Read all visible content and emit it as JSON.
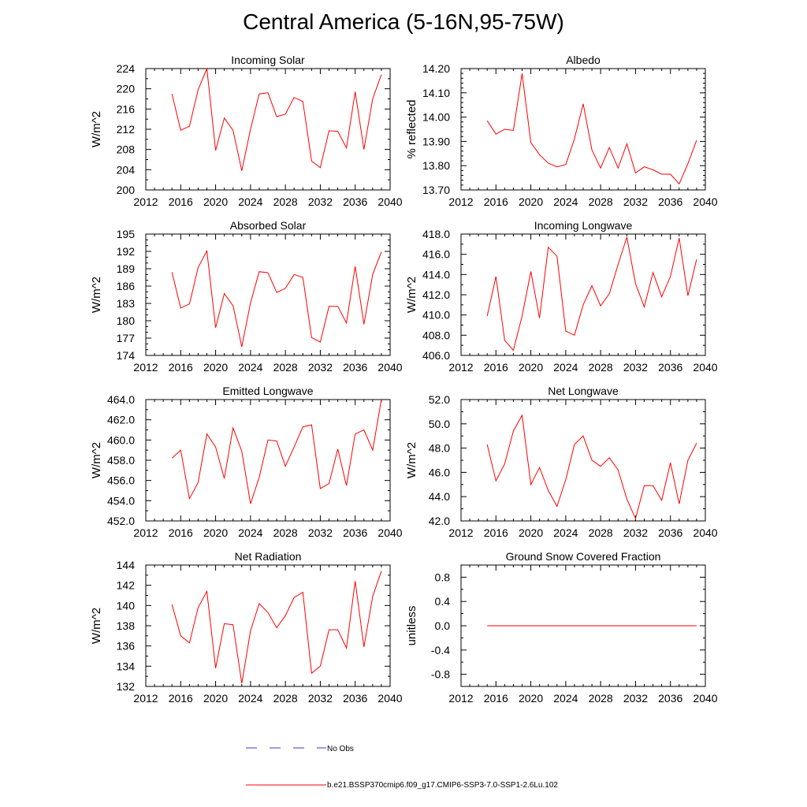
{
  "figure": {
    "title": "Central America (5-16N,95-75W)"
  },
  "legend": [
    {
      "label": "No Obs",
      "color": "#3b3bd6",
      "dash": true
    },
    {
      "label": "b.e21.BSSP370cmip6.f09_g17.CMIP6-SSP3-7.0-SSP1-2.6Lu.102",
      "color": "#ff0000",
      "dash": false
    }
  ],
  "chart_data": [
    {
      "type": "line",
      "title": "Incoming Solar",
      "ylabel": "W/m^2",
      "xlim": [
        2012,
        2040
      ],
      "ylim": [
        200,
        224
      ],
      "x_ticks": [
        2012,
        2016,
        2020,
        2024,
        2028,
        2032,
        2036,
        2040
      ],
      "y_ticks": [
        "200",
        "204",
        "208",
        "212",
        "216",
        "220",
        "224"
      ],
      "y_ticks_val": [
        200,
        204,
        208,
        212,
        216,
        220,
        224
      ],
      "y_minor": 2,
      "series": [
        {
          "color": "#ff0000",
          "x": [
            2015,
            2016,
            2017,
            2018,
            2019,
            2020,
            2021,
            2022,
            2023,
            2024,
            2025,
            2026,
            2027,
            2028,
            2029,
            2030,
            2031,
            2032,
            2033,
            2034,
            2035,
            2036,
            2037,
            2038,
            2039
          ],
          "y": [
            219.0,
            211.8,
            212.6,
            219.8,
            224.0,
            207.8,
            214.2,
            211.8,
            203.8,
            212.0,
            219.0,
            219.2,
            214.5,
            215.0,
            218.3,
            217.5,
            205.7,
            204.4,
            211.7,
            211.6,
            208.3,
            219.4,
            208.0,
            218.0,
            222.8
          ]
        }
      ]
    },
    {
      "type": "line",
      "title": "Albedo",
      "ylabel": "% reflected",
      "xlim": [
        2012,
        2040
      ],
      "ylim": [
        13.7,
        14.2
      ],
      "x_ticks": [
        2012,
        2016,
        2020,
        2024,
        2028,
        2032,
        2036,
        2040
      ],
      "y_ticks": [
        "13.70",
        "13.80",
        "13.90",
        "14.00",
        "14.10",
        "14.20"
      ],
      "y_ticks_val": [
        13.7,
        13.8,
        13.9,
        14.0,
        14.1,
        14.2
      ],
      "y_minor": 5,
      "series": [
        {
          "color": "#ff0000",
          "x": [
            2015,
            2016,
            2017,
            2018,
            2019,
            2020,
            2021,
            2022,
            2023,
            2024,
            2025,
            2026,
            2027,
            2028,
            2029,
            2030,
            2031,
            2032,
            2033,
            2034,
            2035,
            2036,
            2037,
            2038,
            2039
          ],
          "y": [
            13.985,
            13.93,
            13.95,
            13.945,
            14.18,
            13.895,
            13.845,
            13.81,
            13.795,
            13.805,
            13.91,
            14.055,
            13.865,
            13.79,
            13.875,
            13.79,
            13.89,
            13.77,
            13.795,
            13.783,
            13.765,
            13.765,
            13.725,
            13.808,
            13.905
          ]
        }
      ]
    },
    {
      "type": "line",
      "title": "Absorbed Solar",
      "ylabel": "W/m^2",
      "xlim": [
        2012,
        2040
      ],
      "ylim": [
        174,
        195
      ],
      "x_ticks": [
        2012,
        2016,
        2020,
        2024,
        2028,
        2032,
        2036,
        2040
      ],
      "y_ticks": [
        "174",
        "177",
        "180",
        "183",
        "186",
        "189",
        "192",
        "195"
      ],
      "y_ticks_val": [
        174,
        177,
        180,
        183,
        186,
        189,
        192,
        195
      ],
      "y_minor": 3,
      "series": [
        {
          "color": "#ff0000",
          "x": [
            2015,
            2016,
            2017,
            2018,
            2019,
            2020,
            2021,
            2022,
            2023,
            2024,
            2025,
            2026,
            2027,
            2028,
            2029,
            2030,
            2031,
            2032,
            2033,
            2034,
            2035,
            2036,
            2037,
            2038,
            2039
          ],
          "y": [
            188.4,
            182.2,
            182.9,
            189.2,
            192.1,
            178.8,
            184.7,
            182.6,
            175.5,
            183.1,
            188.5,
            188.3,
            184.9,
            185.6,
            188.0,
            187.5,
            177.1,
            176.3,
            182.5,
            182.5,
            179.6,
            189.4,
            179.4,
            188.0,
            191.9
          ]
        }
      ]
    },
    {
      "type": "line",
      "title": "Incoming Longwave",
      "ylabel": "W/m^2",
      "xlim": [
        2012,
        2040
      ],
      "ylim": [
        406.0,
        418.0
      ],
      "x_ticks": [
        2012,
        2016,
        2020,
        2024,
        2028,
        2032,
        2036,
        2040
      ],
      "y_ticks": [
        "406.0",
        "408.0",
        "410.0",
        "412.0",
        "414.0",
        "416.0",
        "418.0"
      ],
      "y_ticks_val": [
        406,
        408,
        410,
        412,
        414,
        416,
        418
      ],
      "y_minor": 2,
      "series": [
        {
          "color": "#ff0000",
          "x": [
            2015,
            2016,
            2017,
            2018,
            2019,
            2020,
            2021,
            2022,
            2023,
            2024,
            2025,
            2026,
            2027,
            2028,
            2029,
            2030,
            2031,
            2032,
            2033,
            2034,
            2035,
            2036,
            2037,
            2038,
            2039
          ],
          "y": [
            409.9,
            413.8,
            407.5,
            406.5,
            409.9,
            414.3,
            409.7,
            416.7,
            415.8,
            408.4,
            408.0,
            411.0,
            412.9,
            410.9,
            412.1,
            415.0,
            417.7,
            413.1,
            410.8,
            414.2,
            411.8,
            413.8,
            417.6,
            411.9,
            415.5
          ]
        }
      ]
    },
    {
      "type": "line",
      "title": "Emitted Longwave",
      "ylabel": "W/m^2",
      "xlim": [
        2012,
        2040
      ],
      "ylim": [
        452.0,
        464.0
      ],
      "x_ticks": [
        2012,
        2016,
        2020,
        2024,
        2028,
        2032,
        2036,
        2040
      ],
      "y_ticks": [
        "452.0",
        "454.0",
        "456.0",
        "458.0",
        "460.0",
        "462.0",
        "464.0"
      ],
      "y_ticks_val": [
        452,
        454,
        456,
        458,
        460,
        462,
        464
      ],
      "y_minor": 2,
      "series": [
        {
          "color": "#ff0000",
          "x": [
            2015,
            2016,
            2017,
            2018,
            2019,
            2020,
            2021,
            2022,
            2023,
            2024,
            2025,
            2026,
            2027,
            2028,
            2029,
            2030,
            2031,
            2032,
            2033,
            2034,
            2035,
            2036,
            2037,
            2038,
            2039
          ],
          "y": [
            458.2,
            459.0,
            454.2,
            455.8,
            460.6,
            459.3,
            456.2,
            461.2,
            458.9,
            453.7,
            456.3,
            460.0,
            459.9,
            457.4,
            459.3,
            461.3,
            461.5,
            455.2,
            455.7,
            459.1,
            455.5,
            460.6,
            461.0,
            459.0,
            464.0
          ]
        }
      ]
    },
    {
      "type": "line",
      "title": "Net Longwave",
      "ylabel": "W/m^2",
      "xlim": [
        2012,
        2040
      ],
      "ylim": [
        42.0,
        52.0
      ],
      "x_ticks": [
        2012,
        2016,
        2020,
        2024,
        2028,
        2032,
        2036,
        2040
      ],
      "y_ticks": [
        "42.0",
        "44.0",
        "46.0",
        "48.0",
        "50.0",
        "52.0"
      ],
      "y_ticks_val": [
        42,
        44,
        46,
        48,
        50,
        52
      ],
      "y_minor": 2,
      "series": [
        {
          "color": "#ff0000",
          "x": [
            2015,
            2016,
            2017,
            2018,
            2019,
            2020,
            2021,
            2022,
            2023,
            2024,
            2025,
            2026,
            2027,
            2028,
            2029,
            2030,
            2031,
            2032,
            2033,
            2034,
            2035,
            2036,
            2037,
            2038,
            2039
          ],
          "y": [
            48.3,
            45.3,
            46.7,
            49.4,
            50.7,
            45.0,
            46.4,
            44.5,
            43.2,
            45.4,
            48.3,
            49.0,
            47.0,
            46.5,
            47.2,
            46.2,
            43.8,
            42.2,
            44.9,
            44.9,
            43.7,
            46.8,
            43.4,
            47.0,
            48.4
          ]
        }
      ]
    },
    {
      "type": "line",
      "title": "Net Radiation",
      "ylabel": "W/m^2",
      "xlim": [
        2012,
        2040
      ],
      "ylim": [
        132,
        144
      ],
      "x_ticks": [
        2012,
        2016,
        2020,
        2024,
        2028,
        2032,
        2036,
        2040
      ],
      "y_ticks": [
        "132",
        "134",
        "136",
        "138",
        "140",
        "142",
        "144"
      ],
      "y_ticks_val": [
        132,
        134,
        136,
        138,
        140,
        142,
        144
      ],
      "y_minor": 2,
      "series": [
        {
          "color": "#ff0000",
          "x": [
            2015,
            2016,
            2017,
            2018,
            2019,
            2020,
            2021,
            2022,
            2023,
            2024,
            2025,
            2026,
            2027,
            2028,
            2029,
            2030,
            2031,
            2032,
            2033,
            2034,
            2035,
            2036,
            2037,
            2038,
            2039
          ],
          "y": [
            140.1,
            137.0,
            136.3,
            139.8,
            141.4,
            133.8,
            138.2,
            138.1,
            132.3,
            137.5,
            140.2,
            139.3,
            137.8,
            139.0,
            140.8,
            141.3,
            133.3,
            134.0,
            137.6,
            137.6,
            135.8,
            142.4,
            135.9,
            140.9,
            143.4
          ]
        }
      ]
    },
    {
      "type": "line",
      "title": "Ground Snow Covered Fraction",
      "ylabel": "unitless",
      "xlim": [
        2012,
        2040
      ],
      "ylim": [
        -1.0,
        1.0
      ],
      "x_ticks": [
        2012,
        2016,
        2020,
        2024,
        2028,
        2032,
        2036,
        2040
      ],
      "y_ticks": [
        "-0.8",
        "-0.4",
        "0.0",
        "0.4",
        "0.8"
      ],
      "y_ticks_val": [
        -0.8,
        -0.4,
        0.0,
        0.4,
        0.8
      ],
      "y_minor": 2,
      "series": [
        {
          "color": "#ff0000",
          "x": [
            2015,
            2016,
            2017,
            2018,
            2019,
            2020,
            2021,
            2022,
            2023,
            2024,
            2025,
            2026,
            2027,
            2028,
            2029,
            2030,
            2031,
            2032,
            2033,
            2034,
            2035,
            2036,
            2037,
            2038,
            2039
          ],
          "y": [
            0,
            0,
            0,
            0,
            0,
            0,
            0,
            0,
            0,
            0,
            0,
            0,
            0,
            0,
            0,
            0,
            0,
            0,
            0,
            0,
            0,
            0,
            0,
            0,
            0
          ]
        }
      ]
    }
  ]
}
